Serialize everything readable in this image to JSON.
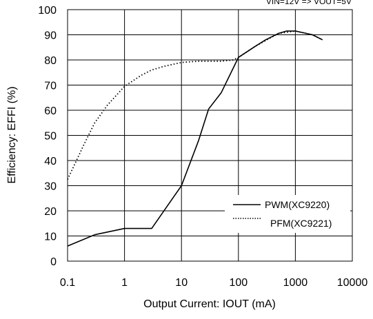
{
  "chart_data": {
    "type": "line",
    "title": "",
    "condition_note": "VIN=12V => VOUT=5V",
    "xlabel": "Output Current: IOUT (mA)",
    "ylabel": "Efficiency: EFFI (%)",
    "x_scale": "log",
    "xlim": [
      0.1,
      10000
    ],
    "ylim": [
      0,
      100
    ],
    "x_ticks": [
      0.1,
      1,
      10,
      100,
      1000,
      10000
    ],
    "x_tick_labels": [
      "0.1",
      "1",
      "10",
      "100",
      "1000",
      "10000"
    ],
    "y_ticks": [
      0,
      10,
      20,
      30,
      40,
      50,
      60,
      70,
      80,
      90,
      100
    ],
    "y_tick_labels": [
      "0",
      "10",
      "20",
      "30",
      "40",
      "50",
      "60",
      "70",
      "80",
      "90",
      "100"
    ],
    "grid": true,
    "legend_position": "bottom-right",
    "series": [
      {
        "name": "PWM(XC9220)",
        "style": "solid",
        "color": "#000000",
        "points": [
          [
            0.1,
            6
          ],
          [
            0.3,
            10.5
          ],
          [
            1,
            13
          ],
          [
            3,
            13
          ],
          [
            10,
            30
          ],
          [
            20,
            48
          ],
          [
            30,
            60.5
          ],
          [
            50,
            67
          ],
          [
            100,
            81
          ],
          [
            200,
            85.5
          ],
          [
            300,
            88
          ],
          [
            500,
            90.5
          ],
          [
            700,
            91.5
          ],
          [
            1000,
            91.5
          ],
          [
            2000,
            90
          ],
          [
            3000,
            88
          ]
        ]
      },
      {
        "name": "PFM(XC9221)",
        "style": "dotted",
        "color": "#000000",
        "points": [
          [
            0.1,
            32.5
          ],
          [
            0.2,
            47
          ],
          [
            0.3,
            55
          ],
          [
            0.5,
            62
          ],
          [
            1,
            69.5
          ],
          [
            2,
            74
          ],
          [
            3,
            76
          ],
          [
            5,
            77.5
          ],
          [
            10,
            79
          ],
          [
            20,
            79.5
          ],
          [
            50,
            79.5
          ],
          [
            80,
            80
          ],
          [
            100,
            81
          ],
          [
            200,
            85.5
          ],
          [
            500,
            90.5
          ],
          [
            1000,
            91.5
          ],
          [
            2000,
            90
          ],
          [
            3000,
            88
          ]
        ]
      }
    ]
  }
}
